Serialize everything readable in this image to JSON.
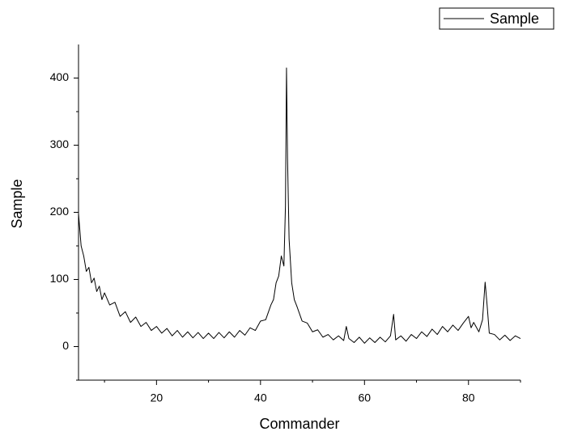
{
  "chart_data": {
    "type": "line",
    "x_label": "Commander",
    "y_label": "Sample",
    "xlim": [
      5,
      90
    ],
    "ylim": [
      -50,
      450
    ],
    "xticks": [
      20,
      40,
      60,
      80
    ],
    "yticks": [
      0,
      100,
      200,
      300,
      400
    ],
    "xminorticks": [
      10,
      30,
      50,
      70,
      90
    ],
    "yminorticks": [
      -50,
      50,
      150,
      250,
      350
    ],
    "legend": "top-right",
    "x": [
      5,
      5.5,
      6,
      6.5,
      7,
      7.5,
      8,
      8.5,
      9,
      9.5,
      10,
      11,
      12,
      13,
      14,
      15,
      16,
      17,
      18,
      19,
      20,
      21,
      22,
      23,
      24,
      25,
      26,
      27,
      28,
      29,
      30,
      31,
      32,
      33,
      34,
      35,
      36,
      37,
      38,
      39,
      40,
      41,
      42,
      42.5,
      43,
      43.5,
      44,
      44.5,
      44.8,
      45,
      45.2,
      45.5,
      46,
      46.5,
      47,
      48,
      49,
      50,
      51,
      52,
      53,
      54,
      55,
      56,
      56.5,
      57,
      58,
      59,
      60,
      61,
      62,
      63,
      64,
      65,
      65.6,
      66,
      67,
      68,
      69,
      70,
      71,
      72,
      73,
      74,
      75,
      76,
      77,
      78,
      79,
      80,
      80.5,
      81,
      82,
      82.7,
      83.2,
      83.6,
      84,
      85,
      86,
      87,
      88,
      89,
      90
    ],
    "series": [
      {
        "name": "Sample",
        "color": "#000000",
        "values": [
          198,
          150,
          135,
          112,
          118,
          95,
          102,
          82,
          90,
          70,
          80,
          62,
          66,
          45,
          52,
          36,
          44,
          30,
          36,
          24,
          30,
          20,
          27,
          16,
          24,
          14,
          22,
          13,
          21,
          12,
          20,
          12,
          21,
          13,
          22,
          14,
          24,
          17,
          28,
          24,
          38,
          40,
          62,
          70,
          95,
          105,
          135,
          120,
          210,
          415,
          280,
          160,
          95,
          70,
          60,
          38,
          35,
          22,
          25,
          14,
          18,
          10,
          16,
          9,
          30,
          12,
          6,
          14,
          5,
          13,
          6,
          14,
          7,
          16,
          48,
          10,
          16,
          8,
          18,
          12,
          22,
          15,
          26,
          18,
          30,
          22,
          32,
          24,
          35,
          45,
          28,
          36,
          22,
          40,
          96,
          60,
          20,
          18,
          10,
          17,
          9,
          16,
          12
        ]
      }
    ]
  }
}
